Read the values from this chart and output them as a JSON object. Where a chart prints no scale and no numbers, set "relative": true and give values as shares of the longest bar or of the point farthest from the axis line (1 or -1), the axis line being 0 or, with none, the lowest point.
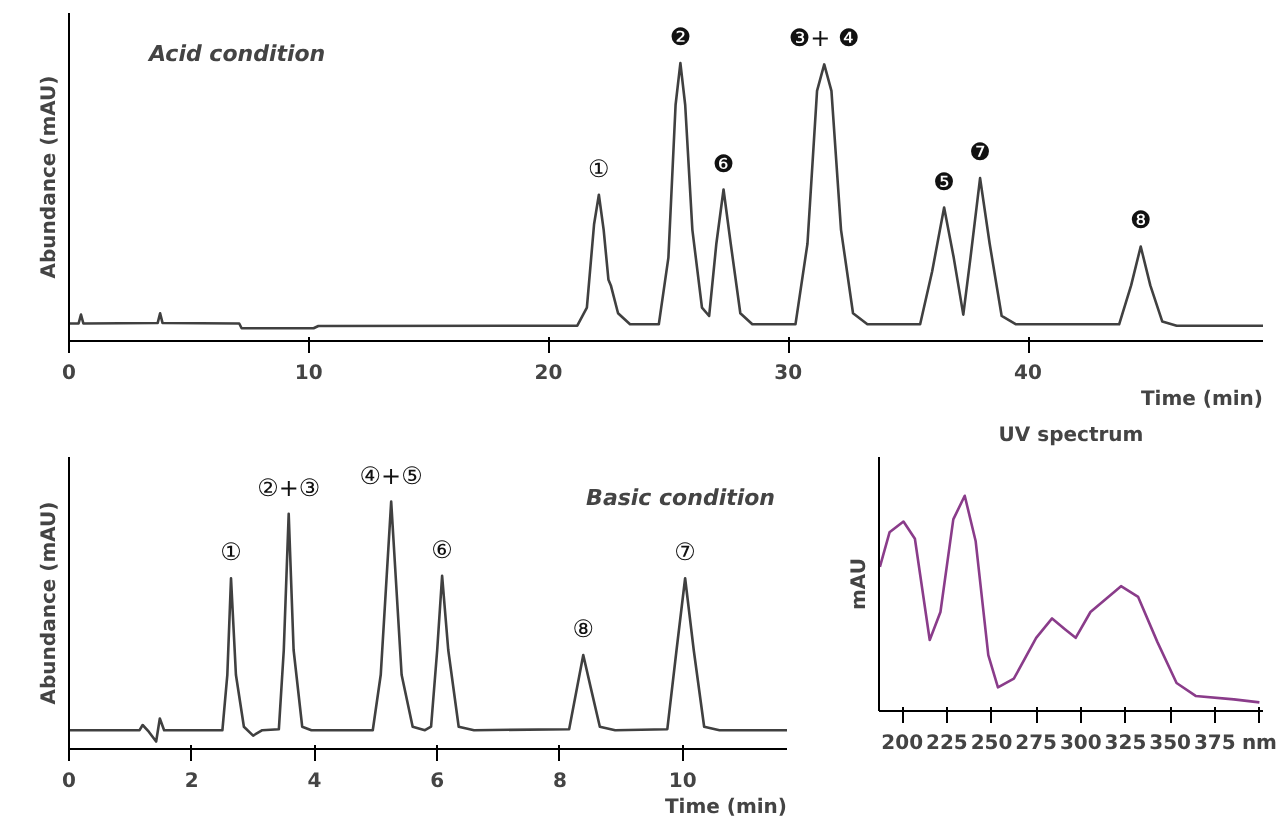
{
  "chart_data": [
    {
      "type": "line",
      "title": "Acid condition",
      "xlabel": "Time (min)",
      "ylabel": "Abundance (mAU)",
      "relative": true,
      "xlim": [
        0,
        49.8
      ],
      "xticks": [
        0,
        10,
        20,
        30,
        40
      ],
      "grid": false,
      "x": [
        0,
        0.4,
        0.5,
        0.6,
        3.7,
        3.8,
        3.9,
        7.1,
        7.2,
        10.2,
        10.4,
        21.2,
        21.6,
        21.9,
        22.1,
        22.3,
        22.5,
        22.6,
        22.9,
        23.4,
        24.6,
        25.0,
        25.3,
        25.5,
        25.7,
        26.0,
        26.4,
        26.7,
        27.0,
        27.3,
        27.6,
        28.0,
        28.5,
        30.3,
        30.8,
        31.2,
        31.5,
        31.8,
        32.2,
        32.7,
        33.3,
        35.5,
        36.0,
        36.5,
        36.9,
        37.3,
        37.6,
        38.0,
        38.4,
        38.9,
        39.5,
        43.8,
        44.3,
        44.7,
        45.1,
        45.6,
        46.2,
        49.8
      ],
      "series": [
        {
          "color": "#404040",
          "values": [
            0.063,
            0.063,
            0.095,
            0.063,
            0.065,
            0.1,
            0.065,
            0.063,
            0.046,
            0.046,
            0.054,
            0.055,
            0.12,
            0.42,
            0.526,
            0.4,
            0.22,
            0.2,
            0.1,
            0.06,
            0.06,
            0.3,
            0.85,
            1.0,
            0.85,
            0.4,
            0.12,
            0.09,
            0.35,
            0.545,
            0.35,
            0.1,
            0.06,
            0.06,
            0.35,
            0.9,
            0.995,
            0.9,
            0.4,
            0.1,
            0.06,
            0.06,
            0.25,
            0.48,
            0.3,
            0.095,
            0.3,
            0.586,
            0.35,
            0.09,
            0.06,
            0.06,
            0.2,
            0.34,
            0.2,
            0.07,
            0.055,
            0.055
          ]
        }
      ],
      "annotations": [
        {
          "text": "①",
          "x": 22.1,
          "y": 0.526
        },
        {
          "text": "❷",
          "x": 25.5,
          "y": 1.0
        },
        {
          "text": "❻",
          "x": 27.3,
          "y": 0.545
        },
        {
          "text": "❸+ ❹",
          "x": 31.5,
          "y": 0.995
        },
        {
          "text": "❺",
          "x": 36.5,
          "y": 0.48
        },
        {
          "text": "❼",
          "x": 38.0,
          "y": 0.586
        },
        {
          "text": "❽",
          "x": 44.7,
          "y": 0.34
        }
      ]
    },
    {
      "type": "line",
      "title": "Basic condition",
      "xlabel": "Time (min)",
      "ylabel": "Abundance (mAU)",
      "relative": true,
      "xlim": [
        0,
        11.7
      ],
      "xticks": [
        0,
        2,
        4,
        6,
        8,
        10
      ],
      "grid": false,
      "x": [
        0,
        1.15,
        1.2,
        1.3,
        1.42,
        1.48,
        1.55,
        2.5,
        2.58,
        2.64,
        2.72,
        2.85,
        3.0,
        3.15,
        3.42,
        3.5,
        3.58,
        3.66,
        3.8,
        3.95,
        4.95,
        5.08,
        5.25,
        5.42,
        5.6,
        5.8,
        5.9,
        6.0,
        6.08,
        6.18,
        6.35,
        6.6,
        8.15,
        8.28,
        8.38,
        8.5,
        8.65,
        8.9,
        9.75,
        9.9,
        10.04,
        10.18,
        10.35,
        10.6,
        11.7
      ],
      "series": [
        {
          "color": "#404040",
          "values": [
            0.076,
            0.076,
            0.097,
            0.07,
            0.03,
            0.123,
            0.076,
            0.076,
            0.3,
            0.69,
            0.3,
            0.09,
            0.054,
            0.076,
            0.08,
            0.4,
            0.95,
            0.4,
            0.09,
            0.076,
            0.076,
            0.3,
            1.0,
            0.3,
            0.09,
            0.076,
            0.09,
            0.4,
            0.7,
            0.4,
            0.09,
            0.076,
            0.08,
            0.25,
            0.38,
            0.25,
            0.09,
            0.076,
            0.08,
            0.4,
            0.69,
            0.4,
            0.09,
            0.076,
            0.076
          ]
        }
      ],
      "annotations": [
        {
          "text": "①",
          "x": 2.64,
          "y": 0.69
        },
        {
          "text": "②+③",
          "x": 3.58,
          "y": 0.95
        },
        {
          "text": "④+⑤",
          "x": 5.25,
          "y": 1.0
        },
        {
          "text": "⑥",
          "x": 6.08,
          "y": 0.7
        },
        {
          "text": "⑧",
          "x": 8.38,
          "y": 0.38
        },
        {
          "text": "⑦",
          "x": 10.04,
          "y": 0.69
        }
      ]
    },
    {
      "type": "line",
      "title": "UV spectrum",
      "ylabel": "mAU",
      "relative": true,
      "xlim": [
        187,
        402
      ],
      "xticks": [
        200,
        225,
        250,
        275,
        300,
        325,
        350,
        375,
        {
          "value": 400,
          "label": "nm"
        }
      ],
      "grid": false,
      "x": [
        187.5,
        192.9,
        200.7,
        207.1,
        215.4,
        221.4,
        228.6,
        235,
        241.1,
        248.2,
        253.6,
        262.5,
        275,
        283.9,
        291.1,
        297.1,
        305.4,
        322.5,
        332.1,
        342.9,
        353.6,
        364.3,
        385.7,
        400
      ],
      "series": [
        {
          "color": "#8a3c8a",
          "values": [
            0.67,
            0.83,
            0.88,
            0.8,
            0.33,
            0.46,
            0.89,
            1.0,
            0.79,
            0.26,
            0.11,
            0.15,
            0.34,
            0.43,
            0.38,
            0.34,
            0.46,
            0.58,
            0.53,
            0.32,
            0.13,
            0.07,
            0.054,
            0.04
          ]
        }
      ]
    }
  ]
}
